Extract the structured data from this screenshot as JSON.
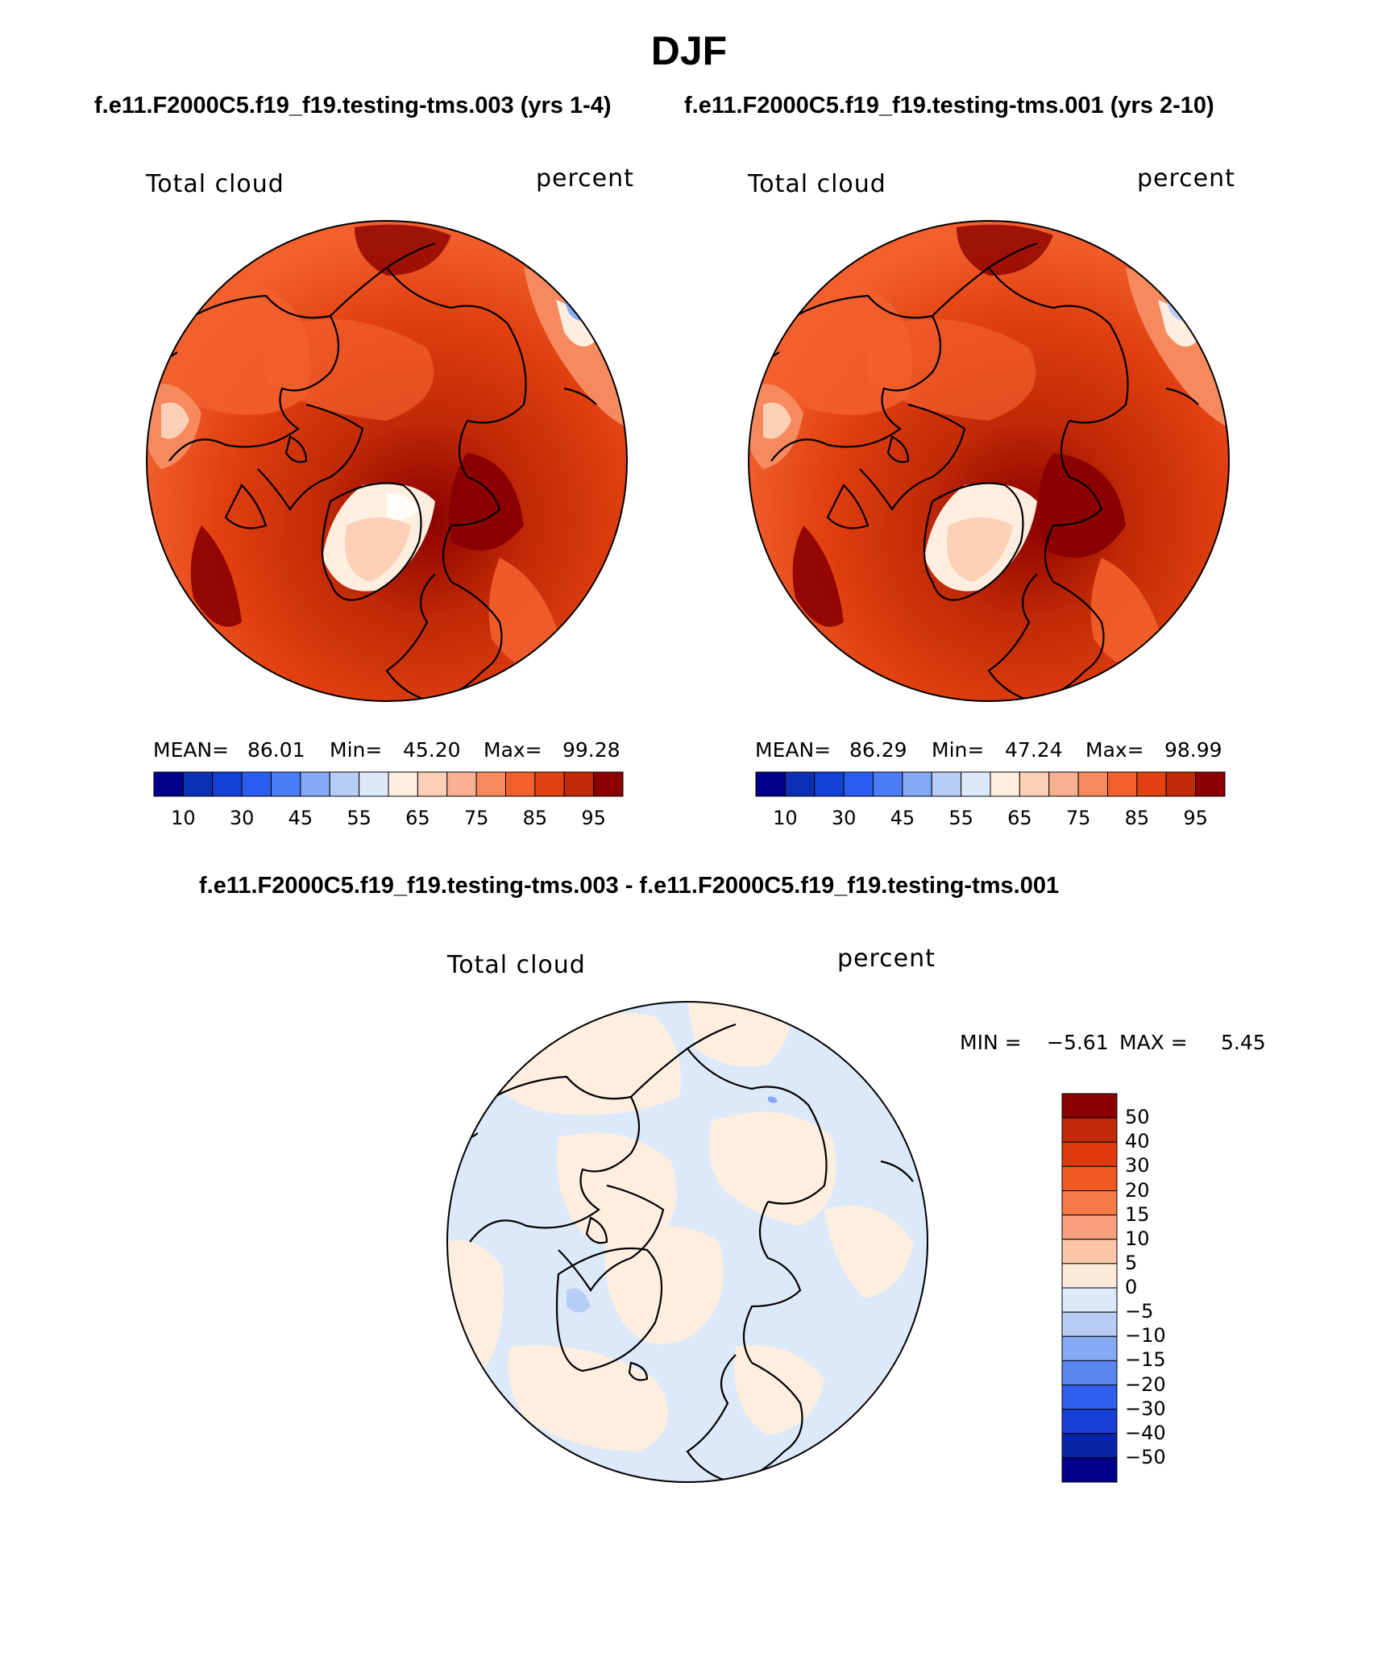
{
  "title": "DJF",
  "case_left": "f.e11.F2000C5.f19_f19.testing-tms.003 (yrs 1-4)",
  "case_right": "f.e11.F2000C5.f19_f19.testing-tms.001 (yrs 2-10)",
  "diff_title": "f.e11.F2000C5.f19_f19.testing-tms.003 - f.e11.F2000C5.f19_f19.testing-tms.001",
  "variable": "Total cloud",
  "units": "percent",
  "colors": {
    "abs_scale": [
      "#00008b",
      "#0a2fb3",
      "#1540d6",
      "#2a5cf2",
      "#4b7cf5",
      "#86a9f5",
      "#b8cdf6",
      "#dce9fa",
      "#fdeee0",
      "#fcd0b6",
      "#f9b090",
      "#f68a5e",
      "#f2602e",
      "#e14010",
      "#c02a06",
      "#8b0000"
    ],
    "diff_scale": [
      "#8b0000",
      "#c02a06",
      "#e03a0d",
      "#f25a24",
      "#f57a48",
      "#f8a07e",
      "#fbc6a8",
      "#fde9d8",
      "#dce9fa",
      "#b8cdf6",
      "#86a9f5",
      "#5a86f2",
      "#2f5ef0",
      "#1640d6",
      "#0a24a8",
      "#00008b"
    ]
  },
  "chart_data": [
    {
      "type": "heatmap",
      "name": "left-panel",
      "title": "Total cloud",
      "units": "percent",
      "stats": {
        "mean_label": "MEAN=",
        "mean": "86.01",
        "min_label": "Min=",
        "min": "45.20",
        "max_label": "Max=",
        "max": "99.28"
      },
      "colorbar_ticks": [
        "10",
        "30",
        "45",
        "55",
        "65",
        "75",
        "85",
        "95"
      ]
    },
    {
      "type": "heatmap",
      "name": "right-panel",
      "title": "Total cloud",
      "units": "percent",
      "stats": {
        "mean_label": "MEAN=",
        "mean": "86.29",
        "min_label": "Min=",
        "min": "47.24",
        "max_label": "Max=",
        "max": "98.99"
      },
      "colorbar_ticks": [
        "10",
        "30",
        "45",
        "55",
        "65",
        "75",
        "85",
        "95"
      ]
    },
    {
      "type": "heatmap",
      "name": "difference-panel",
      "title": "Total cloud",
      "units": "percent",
      "stats": {
        "min_label": "MIN =",
        "min": "−5.61",
        "max_label": "MAX =",
        "max": "5.45"
      },
      "colorbar_ticks": [
        "50",
        "40",
        "30",
        "20",
        "15",
        "10",
        "5",
        "0",
        "−5",
        "−10",
        "−15",
        "−20",
        "−30",
        "−40",
        "−50"
      ]
    }
  ]
}
